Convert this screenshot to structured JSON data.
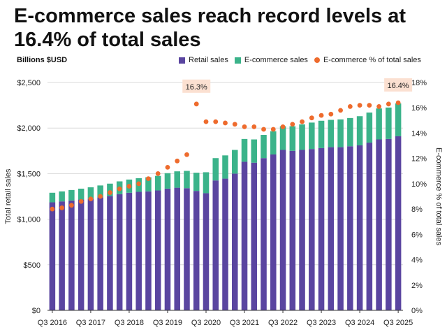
{
  "title": "E-commerce sales reach record levels at 16.4% of total sales",
  "units_label": "Billions $USD",
  "colors": {
    "retail": "#5a45a0",
    "ecommerce": "#3bb38a",
    "share": "#ee6b2d",
    "callout_bg": "#fbe0d1",
    "grid": "#d9d9d9",
    "axis": "#333333"
  },
  "legend": {
    "retail": "Retail sales",
    "ecommerce": "E-commerce sales",
    "share": "E-commerce % of total sales"
  },
  "chart_data": {
    "type": "bar",
    "stacked": true,
    "title": "E-commerce sales reach record levels at 16.4% of total sales",
    "ylabel": "Total retail sales",
    "y2label": "E-commerce % of total sales",
    "ylim": [
      0,
      2500
    ],
    "y2lim": [
      0,
      18
    ],
    "yticks": [
      0,
      500,
      1000,
      1500,
      2000,
      2500
    ],
    "ytick_labels": [
      "$0",
      "$500",
      "$1,000",
      "$1,500",
      "$2,000",
      "$2,500"
    ],
    "y2ticks": [
      0,
      2,
      4,
      6,
      8,
      10,
      12,
      14,
      16,
      18
    ],
    "y2tick_labels": [
      "0%",
      "2%",
      "4%",
      "6%",
      "8%",
      "10%",
      "12%",
      "14%",
      "16%",
      "18%"
    ],
    "x_tick_labels": [
      "Q3 2016",
      "Q3 2017",
      "Q3 2018",
      "Q3 2019",
      "Q3 2020",
      "Q3 2021",
      "Q3 2022",
      "Q3 2023",
      "Q3 2024",
      "Q3 2025"
    ],
    "categories": [
      "Q3 2016",
      "Q4 2016",
      "Q1 2017",
      "Q2 2017",
      "Q3 2017",
      "Q4 2017",
      "Q1 2018",
      "Q2 2018",
      "Q3 2018",
      "Q4 2018",
      "Q1 2019",
      "Q2 2019",
      "Q3 2019",
      "Q4 2019",
      "Q1 2020",
      "Q2 2020",
      "Q3 2020",
      "Q4 2020",
      "Q1 2021",
      "Q2 2021",
      "Q3 2021",
      "Q4 2021",
      "Q1 2022",
      "Q2 2022",
      "Q3 2022",
      "Q4 2022",
      "Q1 2023",
      "Q2 2023",
      "Q3 2023",
      "Q4 2023",
      "Q1 2024",
      "Q2 2024",
      "Q3 2024",
      "Q4 2024",
      "Q1 2025",
      "Q2 2025",
      "Q3 2025"
    ],
    "series": [
      {
        "name": "Retail sales",
        "values": [
          1185,
          1195,
          1205,
          1215,
          1225,
          1240,
          1255,
          1275,
          1290,
          1300,
          1305,
          1315,
          1335,
          1345,
          1340,
          1310,
          1285,
          1425,
          1445,
          1500,
          1630,
          1620,
          1670,
          1710,
          1760,
          1750,
          1760,
          1770,
          1780,
          1790,
          1790,
          1800,
          1810,
          1840,
          1875,
          1880,
          1910
        ]
      },
      {
        "name": "E-commerce sales",
        "values": [
          105,
          110,
          115,
          120,
          125,
          130,
          135,
          140,
          145,
          150,
          155,
          160,
          170,
          180,
          190,
          200,
          230,
          245,
          255,
          260,
          250,
          255,
          255,
          255,
          260,
          270,
          280,
          290,
          300,
          300,
          305,
          310,
          320,
          330,
          340,
          345,
          360
        ]
      },
      {
        "name": "E-commerce % of total sales",
        "type": "line-dots",
        "values": [
          8.0,
          8.1,
          8.3,
          8.6,
          8.8,
          9.0,
          9.3,
          9.6,
          9.8,
          10.0,
          10.4,
          10.8,
          11.3,
          11.8,
          12.3,
          16.3,
          14.9,
          14.9,
          14.8,
          14.7,
          14.5,
          14.5,
          14.3,
          14.3,
          14.5,
          14.7,
          14.9,
          15.2,
          15.4,
          15.5,
          15.8,
          16.1,
          16.2,
          16.2,
          16.1,
          16.3,
          16.4
        ]
      }
    ],
    "annotations": [
      {
        "text": "16.3%",
        "category": "Q2 2020",
        "value": 16.3
      },
      {
        "text": "16.4%",
        "category": "Q3 2025",
        "value": 16.4
      }
    ]
  }
}
